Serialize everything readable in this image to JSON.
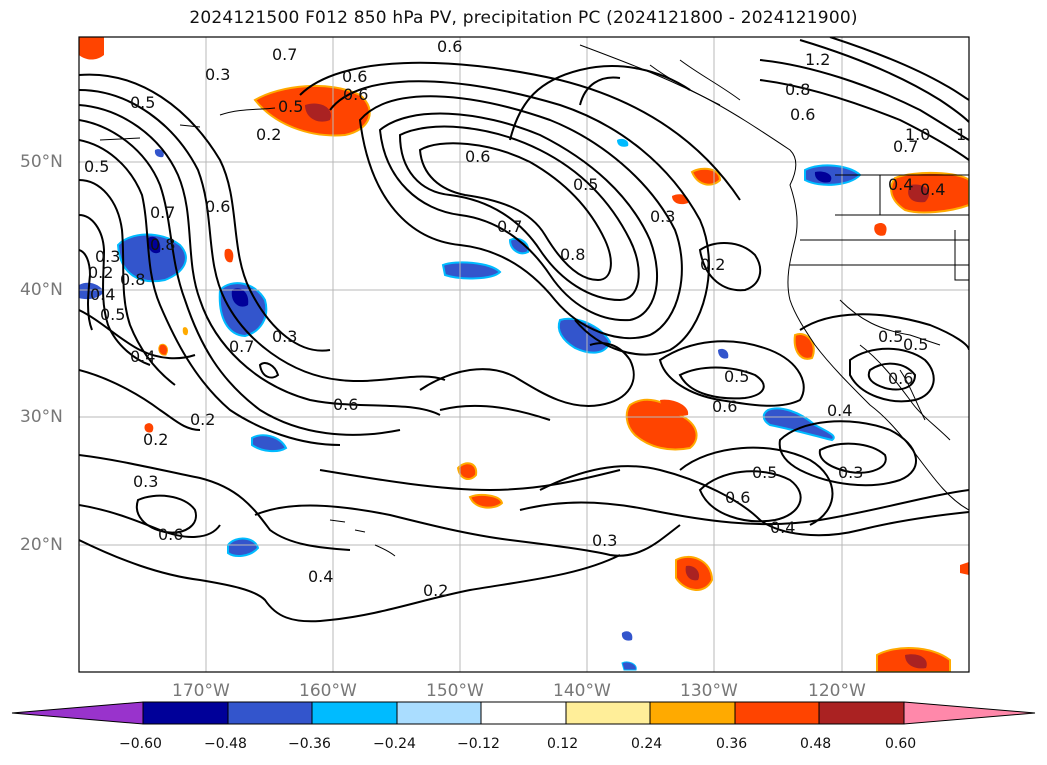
{
  "title": "2024121500 F012 850 hPa PV, precipitation PC (2024121800 - 2024121900)",
  "map": {
    "lat_labels": [
      "50°N",
      "40°N",
      "30°N",
      "20°N"
    ],
    "lon_labels": [
      "170°W",
      "160°W",
      "150°W",
      "140°W",
      "130°W",
      "120°W"
    ]
  },
  "contour_labels": [
    "0.7",
    "0.6",
    "0.3",
    "0.5",
    "0.6",
    "0.5",
    "0.2",
    "0.5",
    "0.3",
    "0.6",
    "0.7",
    "0.8",
    "0.7",
    "0.8",
    "0.5",
    "0.6",
    "0.3",
    "0.2",
    "0.6",
    "0.4",
    "0.2",
    "0.5",
    "0.4",
    "0.7",
    "0.5",
    "0.6",
    "0.4",
    "0.2",
    "0.6",
    "0.3",
    "0.4",
    "0.3",
    "0.2",
    "0.3",
    "0.5",
    "0.6",
    "0.4",
    "0.5",
    "0.6",
    "0.4",
    "0.3",
    "1.2",
    "0.8",
    "1.0",
    "1",
    "0.4",
    "0.6",
    "0.5",
    "0.8",
    "0.6",
    "0.7",
    "0.2"
  ],
  "colorbar": {
    "colors": [
      "#9933cc",
      "#000099",
      "#3355cc",
      "#00bbff",
      "#aaddff",
      "#ffffff",
      "#ffee99",
      "#ffaa00",
      "#ff4400",
      "#aa2222",
      "#ff88aa"
    ],
    "ticks": [
      "−0.60",
      "−0.48",
      "−0.36",
      "−0.24",
      "−0.12",
      "0.12",
      "0.24",
      "0.36",
      "0.48",
      "0.60"
    ]
  }
}
